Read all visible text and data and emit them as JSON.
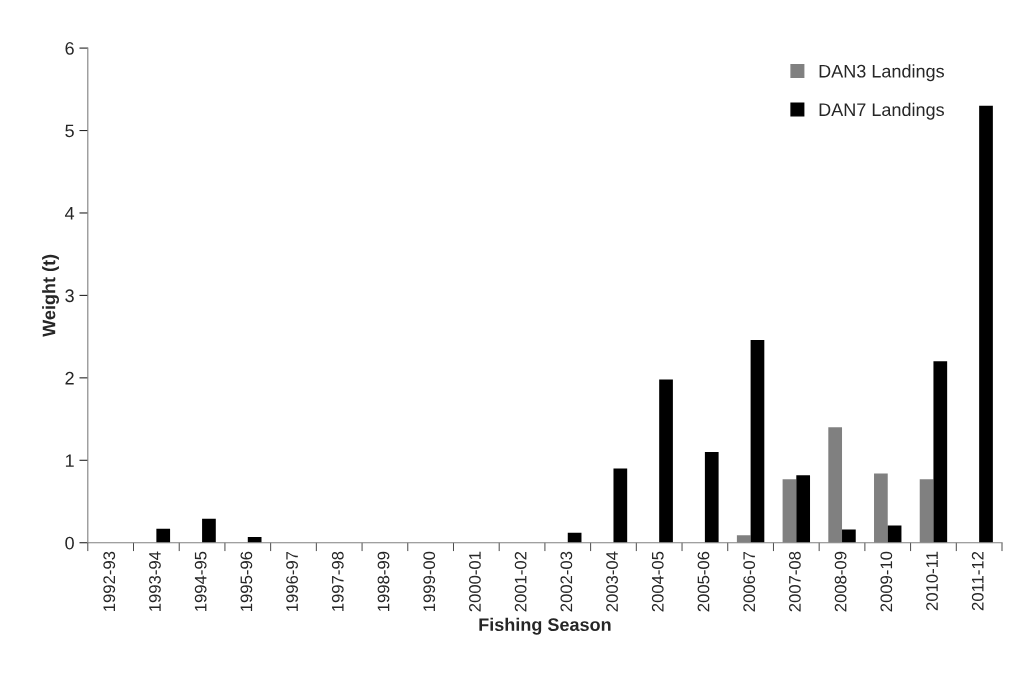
{
  "chart_data": {
    "type": "bar",
    "xlabel": "Fishing Season",
    "ylabel": "Weight (t)",
    "categories": [
      "1992-93",
      "1993-94",
      "1994-95",
      "1995-96",
      "1996-97",
      "1997-98",
      "1998-99",
      "1999-00",
      "2000-01",
      "2001-02",
      "2002-03",
      "2003-04",
      "2004-05",
      "2005-06",
      "2006-07",
      "2007-08",
      "2008-09",
      "2009-10",
      "2010-11",
      "2011-12"
    ],
    "series": [
      {
        "name": "DAN3 Landings",
        "color": "#808080",
        "values": [
          null,
          null,
          null,
          null,
          null,
          null,
          null,
          null,
          null,
          null,
          null,
          null,
          null,
          null,
          0.09,
          0.77,
          1.4,
          0.84,
          0.77,
          null
        ]
      },
      {
        "name": "DAN7 Landings",
        "color": "#000000",
        "values": [
          null,
          0.17,
          0.29,
          0.07,
          null,
          null,
          null,
          null,
          null,
          null,
          0.12,
          0.9,
          1.98,
          1.1,
          2.46,
          0.82,
          0.16,
          0.21,
          2.2,
          5.3
        ]
      }
    ],
    "ylim": [
      0,
      6
    ],
    "yticks": [
      0,
      1,
      2,
      3,
      4,
      5,
      6
    ],
    "grid": false,
    "legend": "top right"
  }
}
